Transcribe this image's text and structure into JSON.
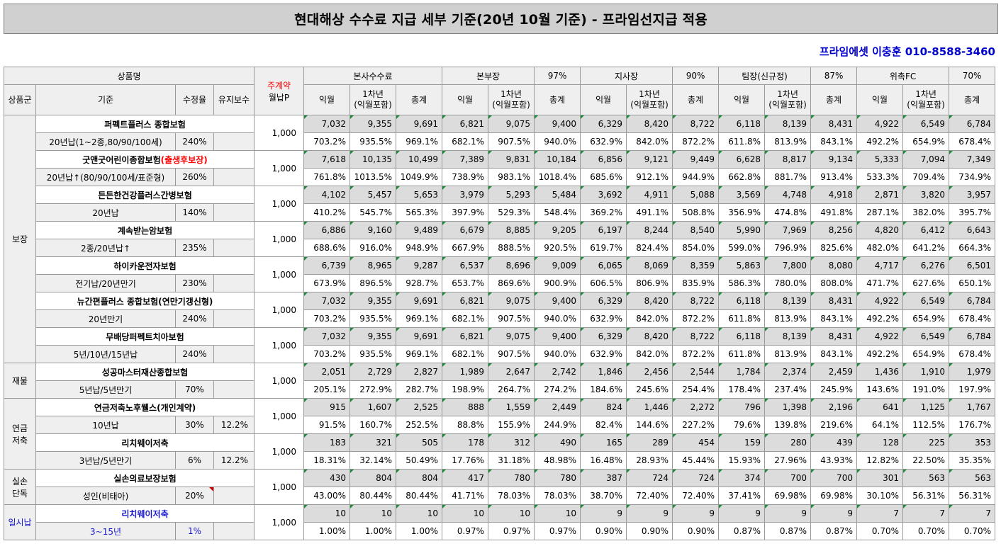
{
  "title": "현대해상 수수료 지급 세부 기준(20년 10월 기준) - 프라임선지급 적용",
  "contact": "프라임에셋 이충훈 010-8588-3460",
  "header": {
    "product_name": "상품명",
    "main_contract": "주계약",
    "monthly_premium": "월납P",
    "groups": [
      {
        "name": "본사수수료",
        "rate": ""
      },
      {
        "name": "본부장",
        "rate": "97%"
      },
      {
        "name": "지사장",
        "rate": "90%"
      },
      {
        "name": "팀장(신규정)",
        "rate": "87%"
      },
      {
        "name": "위촉FC",
        "rate": "70%"
      }
    ],
    "col_category": "상품군",
    "col_basis": "기준",
    "col_adjust": "수정율",
    "col_maint": "유지보수",
    "sub_cols": [
      "익월",
      "1차년",
      "(익월포함)",
      "총계"
    ]
  },
  "categories": [
    {
      "name_lines": [
        "보장"
      ],
      "blue": false
    },
    {
      "name_lines": [
        "재물"
      ],
      "blue": false
    },
    {
      "name_lines": [
        "연금",
        "저축"
      ],
      "blue": false
    },
    {
      "name_lines": [
        "실손",
        "단독"
      ],
      "blue": false
    },
    {
      "name_lines": [
        "일시납"
      ],
      "blue": true
    }
  ],
  "products": [
    {
      "cat": 0,
      "name": "퍼펙트플러스 종합보험",
      "name_red": "",
      "basis": "20년납(1~2종,80/90/100세)",
      "adjust": "240%",
      "maint": "",
      "premium": "1,000",
      "nums": [
        "7,032",
        "9,355",
        "9,691",
        "6,821",
        "9,075",
        "9,400",
        "6,329",
        "8,420",
        "8,722",
        "6,118",
        "8,139",
        "8,431",
        "4,922",
        "6,549",
        "6,784"
      ],
      "pcts": [
        "703.2%",
        "935.5%",
        "969.1%",
        "682.1%",
        "907.5%",
        "940.0%",
        "632.9%",
        "842.0%",
        "872.2%",
        "611.8%",
        "813.9%",
        "843.1%",
        "492.2%",
        "654.9%",
        "678.4%"
      ]
    },
    {
      "cat": 0,
      "name": "굿앤굿어린이종합보험",
      "name_red": "(출생후보장)",
      "basis": "20년납↑(80/90/100세/표준형)",
      "adjust": "260%",
      "maint": "",
      "premium": "1,000",
      "nums": [
        "7,618",
        "10,135",
        "10,499",
        "7,389",
        "9,831",
        "10,184",
        "6,856",
        "9,121",
        "9,449",
        "6,628",
        "8,817",
        "9,134",
        "5,333",
        "7,094",
        "7,349"
      ],
      "pcts": [
        "761.8%",
        "1013.5%",
        "1049.9%",
        "738.9%",
        "983.1%",
        "1018.4%",
        "685.6%",
        "912.1%",
        "944.9%",
        "662.8%",
        "881.7%",
        "913.4%",
        "533.3%",
        "709.4%",
        "734.9%"
      ]
    },
    {
      "cat": 0,
      "name": "든든한건강플러스간병보험",
      "name_red": "",
      "basis": "20년납",
      "adjust": "140%",
      "maint": "",
      "premium": "1,000",
      "nums": [
        "4,102",
        "5,457",
        "5,653",
        "3,979",
        "5,293",
        "5,484",
        "3,692",
        "4,911",
        "5,088",
        "3,569",
        "4,748",
        "4,918",
        "2,871",
        "3,820",
        "3,957"
      ],
      "pcts": [
        "410.2%",
        "545.7%",
        "565.3%",
        "397.9%",
        "529.3%",
        "548.4%",
        "369.2%",
        "491.1%",
        "508.8%",
        "356.9%",
        "474.8%",
        "491.8%",
        "287.1%",
        "382.0%",
        "395.7%"
      ]
    },
    {
      "cat": 0,
      "name": "계속받는암보험",
      "name_red": "",
      "basis": "2종/20년납↑",
      "adjust": "235%",
      "maint": "",
      "premium": "1,000",
      "nums": [
        "6,886",
        "9,160",
        "9,489",
        "6,679",
        "8,885",
        "9,205",
        "6,197",
        "8,244",
        "8,540",
        "5,990",
        "7,969",
        "8,256",
        "4,820",
        "6,412",
        "6,643"
      ],
      "pcts": [
        "688.6%",
        "916.0%",
        "948.9%",
        "667.9%",
        "888.5%",
        "920.5%",
        "619.7%",
        "824.4%",
        "854.0%",
        "599.0%",
        "796.9%",
        "825.6%",
        "482.0%",
        "641.2%",
        "664.3%"
      ]
    },
    {
      "cat": 0,
      "name": "하이카운전자보험",
      "name_red": "",
      "basis": "전기납/20년만기",
      "adjust": "230%",
      "maint": "",
      "premium": "1,000",
      "nums": [
        "6,739",
        "8,965",
        "9,287",
        "6,537",
        "8,696",
        "9,009",
        "6,065",
        "8,069",
        "8,359",
        "5,863",
        "7,800",
        "8,080",
        "4,717",
        "6,276",
        "6,501"
      ],
      "pcts": [
        "673.9%",
        "896.5%",
        "928.7%",
        "653.7%",
        "869.6%",
        "900.9%",
        "606.5%",
        "806.9%",
        "835.9%",
        "586.3%",
        "780.0%",
        "808.0%",
        "471.7%",
        "627.6%",
        "650.1%"
      ]
    },
    {
      "cat": 0,
      "name": "뉴간편플러스 종합보험(연만기갱신형)",
      "name_red": "",
      "basis": "20년만기",
      "adjust": "240%",
      "maint": "",
      "premium": "1,000",
      "nums": [
        "7,032",
        "9,355",
        "9,691",
        "6,821",
        "9,075",
        "9,400",
        "6,329",
        "8,420",
        "8,722",
        "6,118",
        "8,139",
        "8,431",
        "4,922",
        "6,549",
        "6,784"
      ],
      "pcts": [
        "703.2%",
        "935.5%",
        "969.1%",
        "682.1%",
        "907.5%",
        "940.0%",
        "632.9%",
        "842.0%",
        "872.2%",
        "611.8%",
        "813.9%",
        "843.1%",
        "492.2%",
        "654.9%",
        "678.4%"
      ]
    },
    {
      "cat": 0,
      "name": "무배당퍼펙트치아보험",
      "name_red": "",
      "basis": "5년/10년/15년납",
      "adjust": "240%",
      "maint": "",
      "premium": "1,000",
      "nums": [
        "7,032",
        "9,355",
        "9,691",
        "6,821",
        "9,075",
        "9,400",
        "6,329",
        "8,420",
        "8,722",
        "6,118",
        "8,139",
        "8,431",
        "4,922",
        "6,549",
        "6,784"
      ],
      "pcts": [
        "703.2%",
        "935.5%",
        "969.1%",
        "682.1%",
        "907.5%",
        "940.0%",
        "632.9%",
        "842.0%",
        "872.2%",
        "611.8%",
        "813.9%",
        "843.1%",
        "492.2%",
        "654.9%",
        "678.4%"
      ]
    },
    {
      "cat": 1,
      "name": "성공마스터재산종합보험",
      "name_red": "",
      "basis": "5년납/5년만기",
      "adjust": "70%",
      "maint": "",
      "premium": "1,000",
      "nums": [
        "2,051",
        "2,729",
        "2,827",
        "1,989",
        "2,647",
        "2,742",
        "1,846",
        "2,456",
        "2,544",
        "1,784",
        "2,374",
        "2,459",
        "1,436",
        "1,910",
        "1,979"
      ],
      "pcts": [
        "205.1%",
        "272.9%",
        "282.7%",
        "198.9%",
        "264.7%",
        "274.2%",
        "184.6%",
        "245.6%",
        "254.4%",
        "178.4%",
        "237.4%",
        "245.9%",
        "143.6%",
        "191.0%",
        "197.9%"
      ]
    },
    {
      "cat": 2,
      "name": "연금저축노후웰스(개인계약)",
      "name_red": "",
      "basis": "10년납",
      "adjust": "30%",
      "maint": "12.2%",
      "premium": "1,000",
      "nums": [
        "915",
        "1,607",
        "2,525",
        "888",
        "1,559",
        "2,449",
        "824",
        "1,446",
        "2,272",
        "796",
        "1,398",
        "2,196",
        "641",
        "1,125",
        "1,767"
      ],
      "pcts": [
        "91.5%",
        "160.7%",
        "252.5%",
        "88.8%",
        "155.9%",
        "244.9%",
        "82.4%",
        "144.6%",
        "227.2%",
        "79.6%",
        "139.8%",
        "219.6%",
        "64.1%",
        "112.5%",
        "176.7%"
      ]
    },
    {
      "cat": 2,
      "name": "리치웨이저축",
      "name_red": "",
      "basis": "3년납/5년만기",
      "adjust": "6%",
      "maint": "12.2%",
      "premium": "1,000",
      "nums": [
        "183",
        "321",
        "505",
        "178",
        "312",
        "490",
        "165",
        "289",
        "454",
        "159",
        "280",
        "439",
        "128",
        "225",
        "353"
      ],
      "pcts": [
        "18.31%",
        "32.14%",
        "50.49%",
        "17.76%",
        "31.18%",
        "48.98%",
        "16.48%",
        "28.93%",
        "45.44%",
        "15.93%",
        "27.96%",
        "43.93%",
        "12.82%",
        "22.50%",
        "35.35%"
      ]
    },
    {
      "cat": 3,
      "name": "실손의료보장보험",
      "name_red": "",
      "basis": "성인(비태아)",
      "adjust": "20%",
      "maint": "",
      "premium": "1,000",
      "nums": [
        "430",
        "804",
        "804",
        "417",
        "780",
        "780",
        "387",
        "724",
        "724",
        "374",
        "700",
        "700",
        "301",
        "563",
        "563"
      ],
      "pcts": [
        "43.00%",
        "80.44%",
        "80.44%",
        "41.71%",
        "78.03%",
        "78.03%",
        "38.70%",
        "72.40%",
        "72.40%",
        "37.41%",
        "69.98%",
        "69.98%",
        "30.10%",
        "56.31%",
        "56.31%"
      ]
    },
    {
      "cat": 4,
      "name": "리치웨이저축",
      "name_red": "",
      "basis": "3~15년",
      "adjust": "1%",
      "maint": "",
      "premium": "1,000",
      "nums": [
        "10",
        "10",
        "10",
        "10",
        "10",
        "10",
        "9",
        "9",
        "9",
        "9",
        "9",
        "9",
        "7",
        "7",
        "7"
      ],
      "pcts": [
        "1.00%",
        "1.00%",
        "1.00%",
        "0.97%",
        "0.97%",
        "0.97%",
        "0.90%",
        "0.90%",
        "0.90%",
        "0.87%",
        "0.87%",
        "0.87%",
        "0.70%",
        "0.70%",
        "0.70%"
      ]
    }
  ]
}
